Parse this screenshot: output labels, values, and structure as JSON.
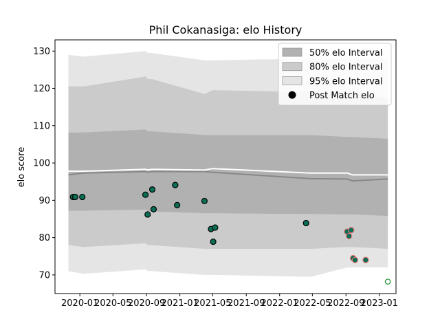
{
  "chart_data": {
    "type": "area",
    "title": "Phil Cokanasiga: elo History",
    "xlabel": "",
    "ylabel": "elo score",
    "ylim": [
      65,
      133
    ],
    "xlim": [
      "2019-10-02",
      "2023-03-03"
    ],
    "x_ticks": [
      "2020-01",
      "2020-05",
      "2020-09",
      "2021-01",
      "2021-05",
      "2021-09",
      "2022-01",
      "2022-05",
      "2022-09",
      "2023-01"
    ],
    "y_ticks": [
      70,
      80,
      90,
      100,
      110,
      120,
      130
    ],
    "grid": false,
    "legend_position": "top-right",
    "legend": [
      {
        "label": "50% elo Interval",
        "swatch": "band50"
      },
      {
        "label": "80% elo Interval",
        "swatch": "band80"
      },
      {
        "label": "95% elo Interval",
        "swatch": "band95"
      },
      {
        "label": "Post Match elo",
        "swatch": "marker"
      }
    ],
    "colors": {
      "band95": "#e5e5e5",
      "band80": "#cbcbcb",
      "band50": "#b1b1b1",
      "mean_line": "#888888",
      "median_line": "#ffffff",
      "win_marker": "#0a6e54",
      "loss_marker": "#e07070",
      "future_marker": "#1a8a2a"
    },
    "intervals": {
      "dates": [
        "2019-11-20",
        "2020-01-15",
        "2020-08-30",
        "2020-09-05",
        "2020-09-20",
        "2021-04-01",
        "2021-05-01",
        "2022-04-25",
        "2022-09-05",
        "2022-09-25",
        "2023-02-01"
      ],
      "p95_high": [
        129,
        128.5,
        130,
        129.5,
        129.5,
        127.5,
        127.5,
        128,
        128,
        128,
        128
      ],
      "p95_low": [
        71,
        70.3,
        71.5,
        71,
        71,
        70,
        70,
        69.5,
        72,
        72,
        72
      ],
      "p80_high": [
        120.5,
        120.5,
        123.2,
        122.5,
        122.5,
        118.5,
        119.5,
        119,
        118.5,
        118.5,
        117.5
      ],
      "p80_low": [
        78,
        77.5,
        78.5,
        78,
        78,
        77,
        77,
        77,
        77.5,
        77.5,
        77
      ],
      "p50_high": [
        108.2,
        108.2,
        109,
        108.5,
        108.5,
        107.5,
        107.5,
        107.5,
        107,
        107,
        106.5
      ],
      "p50_low": [
        87.2,
        87.2,
        87.5,
        87,
        87,
        86.5,
        86.5,
        86.3,
        86.2,
        86.2,
        85.8
      ],
      "mean": [
        96.8,
        97.3,
        97.7,
        97.5,
        97.7,
        97.7,
        97.5,
        95.8,
        95.7,
        95.2,
        95.7
      ],
      "median": [
        97.8,
        97.8,
        98.3,
        98.1,
        98.3,
        98.1,
        98.5,
        97.3,
        97.3,
        96.8,
        96.8
      ]
    },
    "series": [
      {
        "result": "win",
        "points": [
          {
            "x": "2019-12-07",
            "y": 90.9
          },
          {
            "x": "2019-12-15",
            "y": 90.9
          },
          {
            "x": "2020-01-10",
            "y": 90.9
          },
          {
            "x": "2020-08-28",
            "y": 91.5
          },
          {
            "x": "2020-09-05",
            "y": 86.2
          },
          {
            "x": "2020-09-22",
            "y": 92.9
          },
          {
            "x": "2020-09-27",
            "y": 87.6
          },
          {
            "x": "2020-12-15",
            "y": 94.1
          },
          {
            "x": "2020-12-22",
            "y": 88.7
          },
          {
            "x": "2021-04-01",
            "y": 89.8
          },
          {
            "x": "2021-04-25",
            "y": 82.3
          },
          {
            "x": "2021-05-03",
            "y": 78.9
          },
          {
            "x": "2021-05-10",
            "y": 82.7
          },
          {
            "x": "2022-04-08",
            "y": 83.9
          }
        ]
      },
      {
        "result": "loss",
        "points": [
          {
            "x": "2022-09-05",
            "y": 81.6
          },
          {
            "x": "2022-09-12",
            "y": 80.4
          },
          {
            "x": "2022-09-20",
            "y": 82.0
          },
          {
            "x": "2022-09-27",
            "y": 74.5
          },
          {
            "x": "2022-10-04",
            "y": 74.0
          },
          {
            "x": "2022-11-12",
            "y": 74.0
          }
        ]
      },
      {
        "result": "upcoming",
        "points": [
          {
            "x": "2023-02-01",
            "y": 68.2
          }
        ]
      }
    ]
  }
}
